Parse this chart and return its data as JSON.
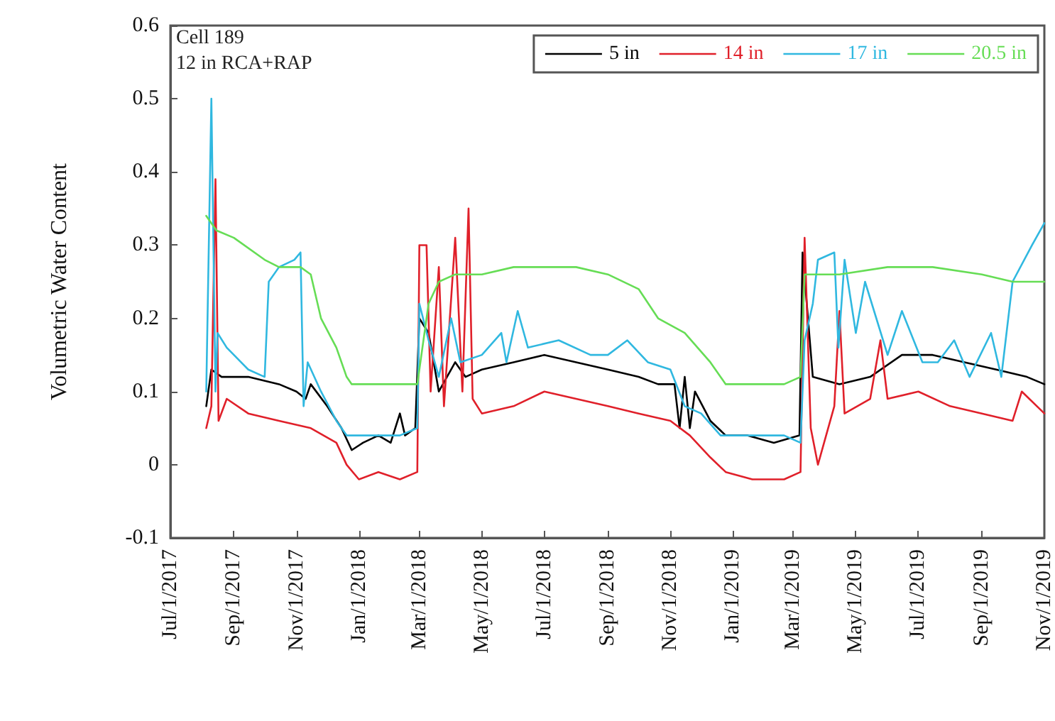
{
  "chart_data": {
    "type": "line",
    "ylabel": "Volumetric Water Content",
    "annotations": [
      "Cell 189",
      "12 in RCA+RAP"
    ],
    "xlim": [
      "2017-07-01",
      "2019-11-01"
    ],
    "xticks": [
      {
        "value": "2017-07-01",
        "label": "Jul/1/2017"
      },
      {
        "value": "2017-09-01",
        "label": "Sep/1/2017"
      },
      {
        "value": "2017-11-01",
        "label": "Nov/1/2017"
      },
      {
        "value": "2018-01-01",
        "label": "Jan/1/2018"
      },
      {
        "value": "2018-03-01",
        "label": "Mar/1/2018"
      },
      {
        "value": "2018-05-01",
        "label": "May/1/2018"
      },
      {
        "value": "2018-07-01",
        "label": "Jul/1/2018"
      },
      {
        "value": "2018-09-01",
        "label": "Sep/1/2018"
      },
      {
        "value": "2018-11-01",
        "label": "Nov/1/2018"
      },
      {
        "value": "2019-01-01",
        "label": "Jan/1/2019"
      },
      {
        "value": "2019-03-01",
        "label": "Mar/1/2019"
      },
      {
        "value": "2019-05-01",
        "label": "May/1/2019"
      },
      {
        "value": "2019-07-01",
        "label": "Jul/1/2019"
      },
      {
        "value": "2019-09-01",
        "label": "Sep/1/2019"
      },
      {
        "value": "2019-11-01",
        "label": "Nov/1/2019"
      }
    ],
    "ylim": [
      -0.1,
      0.6
    ],
    "yticks": [
      -0.1,
      0,
      0.1,
      0.2,
      0.3,
      0.4,
      0.5,
      0.6
    ],
    "grid": false,
    "legend": "top right",
    "marker": "none",
    "line_style": "solid",
    "series": [
      {
        "name": "5 in",
        "color": "#000000",
        "x": [
          "2017-08-05",
          "2017-08-10",
          "2017-08-20",
          "2017-09-15",
          "2017-10-15",
          "2017-11-01",
          "2017-11-10",
          "2017-11-15",
          "2017-12-01",
          "2017-12-15",
          "2017-12-25",
          "2018-01-05",
          "2018-01-20",
          "2018-02-01",
          "2018-02-10",
          "2018-02-15",
          "2018-02-25",
          "2018-03-01",
          "2018-03-10",
          "2018-03-20",
          "2018-04-05",
          "2018-04-15",
          "2018-05-01",
          "2018-06-01",
          "2018-07-01",
          "2018-08-01",
          "2018-09-01",
          "2018-10-01",
          "2018-10-20",
          "2018-11-05",
          "2018-11-10",
          "2018-11-15",
          "2018-11-20",
          "2018-11-25",
          "2018-12-10",
          "2018-12-25",
          "2019-01-15",
          "2019-02-10",
          "2019-03-07",
          "2019-03-10",
          "2019-03-20",
          "2019-04-15",
          "2019-05-15",
          "2019-06-15",
          "2019-07-15",
          "2019-08-15",
          "2019-09-15",
          "2019-10-15",
          "2019-11-01"
        ],
        "values": [
          0.08,
          0.13,
          0.12,
          0.12,
          0.11,
          0.1,
          0.09,
          0.11,
          0.08,
          0.05,
          0.02,
          0.03,
          0.04,
          0.03,
          0.07,
          0.04,
          0.05,
          0.2,
          0.18,
          0.1,
          0.14,
          0.12,
          0.13,
          0.14,
          0.15,
          0.14,
          0.13,
          0.12,
          0.11,
          0.11,
          0.05,
          0.12,
          0.05,
          0.1,
          0.06,
          0.04,
          0.04,
          0.03,
          0.04,
          0.29,
          0.12,
          0.11,
          0.12,
          0.15,
          0.15,
          0.14,
          0.13,
          0.12,
          0.11
        ]
      },
      {
        "name": "14 in",
        "color": "#e0202a",
        "x": [
          "2017-08-05",
          "2017-08-10",
          "2017-08-14",
          "2017-08-17",
          "2017-08-25",
          "2017-09-15",
          "2017-10-15",
          "2017-11-15",
          "2017-12-10",
          "2017-12-20",
          "2018-01-01",
          "2018-01-20",
          "2018-02-10",
          "2018-02-27",
          "2018-03-01",
          "2018-03-08",
          "2018-03-12",
          "2018-03-20",
          "2018-03-25",
          "2018-04-05",
          "2018-04-12",
          "2018-04-18",
          "2018-04-22",
          "2018-05-01",
          "2018-06-01",
          "2018-07-01",
          "2018-08-01",
          "2018-09-01",
          "2018-10-01",
          "2018-11-01",
          "2018-11-20",
          "2018-12-10",
          "2018-12-25",
          "2019-01-20",
          "2019-02-20",
          "2019-03-08",
          "2019-03-12",
          "2019-03-18",
          "2019-03-25",
          "2019-04-10",
          "2019-04-15",
          "2019-04-20",
          "2019-05-15",
          "2019-05-25",
          "2019-06-01",
          "2019-07-01",
          "2019-08-01",
          "2019-09-01",
          "2019-10-01",
          "2019-10-10",
          "2019-11-01"
        ],
        "values": [
          0.05,
          0.08,
          0.39,
          0.06,
          0.09,
          0.07,
          0.06,
          0.05,
          0.03,
          0.0,
          -0.02,
          -0.01,
          -0.02,
          -0.01,
          0.3,
          0.3,
          0.1,
          0.27,
          0.08,
          0.31,
          0.1,
          0.35,
          0.09,
          0.07,
          0.08,
          0.1,
          0.09,
          0.08,
          0.07,
          0.06,
          0.04,
          0.01,
          -0.01,
          -0.02,
          -0.02,
          -0.01,
          0.31,
          0.05,
          0.0,
          0.08,
          0.21,
          0.07,
          0.09,
          0.17,
          0.09,
          0.1,
          0.08,
          0.07,
          0.06,
          0.1,
          0.07
        ]
      },
      {
        "name": "17 in",
        "color": "#30b8e0",
        "x": [
          "2017-08-05",
          "2017-08-10",
          "2017-08-14",
          "2017-08-16",
          "2017-08-25",
          "2017-09-15",
          "2017-10-01",
          "2017-10-05",
          "2017-10-15",
          "2017-10-30",
          "2017-11-05",
          "2017-11-08",
          "2017-11-12",
          "2017-11-25",
          "2017-12-10",
          "2017-12-20",
          "2018-01-10",
          "2018-02-10",
          "2018-02-27",
          "2018-03-01",
          "2018-03-10",
          "2018-03-20",
          "2018-04-01",
          "2018-04-10",
          "2018-05-01",
          "2018-05-20",
          "2018-05-25",
          "2018-06-05",
          "2018-06-15",
          "2018-07-15",
          "2018-08-15",
          "2018-09-01",
          "2018-09-20",
          "2018-10-10",
          "2018-11-01",
          "2018-11-15",
          "2018-12-01",
          "2018-12-20",
          "2019-01-20",
          "2019-02-20",
          "2019-03-08",
          "2019-03-12",
          "2019-03-20",
          "2019-03-25",
          "2019-04-10",
          "2019-04-14",
          "2019-04-20",
          "2019-05-01",
          "2019-05-10",
          "2019-06-01",
          "2019-06-15",
          "2019-07-05",
          "2019-07-20",
          "2019-08-05",
          "2019-08-20",
          "2019-09-10",
          "2019-09-20",
          "2019-10-01",
          "2019-10-20",
          "2019-11-01"
        ],
        "values": [
          0.1,
          0.5,
          0.1,
          0.18,
          0.16,
          0.13,
          0.12,
          0.25,
          0.27,
          0.28,
          0.29,
          0.08,
          0.14,
          0.1,
          0.06,
          0.04,
          0.04,
          0.04,
          0.05,
          0.22,
          0.17,
          0.12,
          0.2,
          0.14,
          0.15,
          0.18,
          0.14,
          0.21,
          0.16,
          0.17,
          0.15,
          0.15,
          0.17,
          0.14,
          0.13,
          0.08,
          0.07,
          0.04,
          0.04,
          0.04,
          0.03,
          0.17,
          0.22,
          0.28,
          0.29,
          0.16,
          0.28,
          0.18,
          0.25,
          0.15,
          0.21,
          0.14,
          0.14,
          0.17,
          0.12,
          0.18,
          0.12,
          0.25,
          0.3,
          0.33
        ]
      },
      {
        "name": "20.5 in",
        "color": "#66dd55",
        "x": [
          "2017-08-05",
          "2017-08-15",
          "2017-09-01",
          "2017-10-01",
          "2017-10-15",
          "2017-11-05",
          "2017-11-15",
          "2017-11-25",
          "2017-12-10",
          "2017-12-20",
          "2017-12-25",
          "2018-02-01",
          "2018-02-27",
          "2018-03-10",
          "2018-03-20",
          "2018-04-05",
          "2018-05-01",
          "2018-06-01",
          "2018-07-01",
          "2018-08-01",
          "2018-09-01",
          "2018-10-01",
          "2018-10-20",
          "2018-11-15",
          "2018-12-10",
          "2018-12-25",
          "2019-02-20",
          "2019-03-08",
          "2019-03-12",
          "2019-04-15",
          "2019-06-01",
          "2019-07-15",
          "2019-09-01",
          "2019-10-01",
          "2019-11-01"
        ],
        "values": [
          0.34,
          0.32,
          0.31,
          0.28,
          0.27,
          0.27,
          0.26,
          0.2,
          0.16,
          0.12,
          0.11,
          0.11,
          0.11,
          0.22,
          0.25,
          0.26,
          0.26,
          0.27,
          0.27,
          0.27,
          0.26,
          0.24,
          0.2,
          0.18,
          0.14,
          0.11,
          0.11,
          0.12,
          0.26,
          0.26,
          0.27,
          0.27,
          0.26,
          0.25,
          0.25
        ]
      }
    ]
  }
}
